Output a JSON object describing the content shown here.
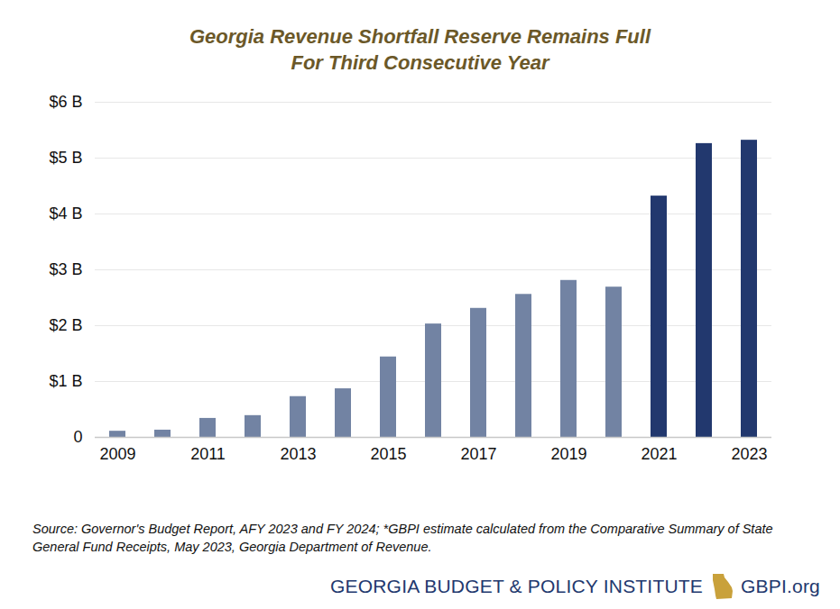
{
  "chart_data": {
    "type": "bar",
    "title": "Georgia Revenue Shortfall Reserve Remains Full\nFor Third Consecutive Year",
    "categories": [
      "2009",
      null,
      "2011",
      null,
      "2013",
      null,
      "2015",
      null,
      "2017",
      null,
      "2019",
      null,
      "2021",
      null,
      "2023"
    ],
    "values": [
      0.11,
      0.13,
      0.34,
      0.39,
      0.73,
      0.87,
      1.44,
      2.03,
      2.31,
      2.56,
      2.81,
      2.69,
      4.32,
      5.26,
      5.32
    ],
    "colors": [
      "#7283a3",
      "#7283a3",
      "#7283a3",
      "#7283a3",
      "#7283a3",
      "#7283a3",
      "#7283a3",
      "#7283a3",
      "#7283a3",
      "#7283a3",
      "#7283a3",
      "#7283a3",
      "#22386e",
      "#22386e",
      "#22386e"
    ],
    "ylim": [
      0,
      6
    ],
    "yticks": [
      0,
      {
        "value": 1,
        "label": "$1 B"
      },
      {
        "value": 2,
        "label": "$2 B"
      },
      {
        "value": 3,
        "label": "$3 B"
      },
      {
        "value": 4,
        "label": "$4 B"
      },
      {
        "value": 5,
        "label": "$5 B"
      },
      {
        "value": 6,
        "label": "$6 B"
      }
    ],
    "grid": true,
    "caption": "Source: Governor's Budget Report, AFY 2023 and FY 2024; *GBPI estimate calculated from the Comparative Summary of State General Fund Receipts, May 2023, Georgia Department of Revenue.",
    "annotations": [
      "GEORGIA BUDGET & POLICY INSTITUTE",
      "GBPI.org"
    ]
  }
}
